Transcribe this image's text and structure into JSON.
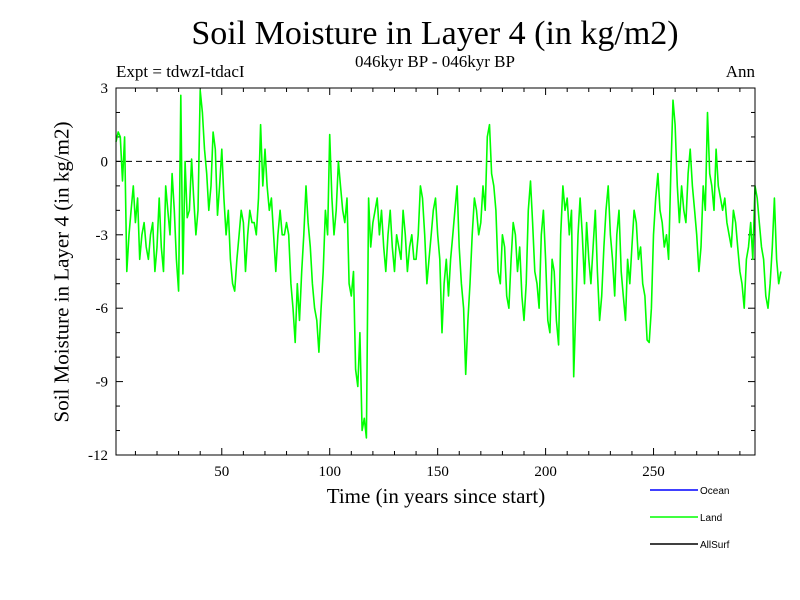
{
  "chart_data": {
    "type": "line",
    "title": "Soil Moisture in Layer 4 (in kg/m2)",
    "subtitle": "046kyr BP - 046kyr BP",
    "experiment_label": "Expt = tdwzI-tdacI",
    "period_label": "Ann",
    "xlabel": "Time (in years since start)",
    "ylabel": "Soil Moisture in Layer 4 (in kg/m2)",
    "xlim": [
      1,
      297
    ],
    "ylim": [
      -12,
      3
    ],
    "x_ticks": [
      50,
      100,
      150,
      200,
      250
    ],
    "y_ticks": [
      3,
      0,
      -3,
      -6,
      -9,
      -12
    ],
    "zero_line": true,
    "grid": false,
    "legend_position": "bottom-right",
    "legend": [
      {
        "name": "Ocean",
        "color": "#0000ff"
      },
      {
        "name": "Land",
        "color": "#00ff00"
      },
      {
        "name": "AllSurf",
        "color": "#000000"
      }
    ],
    "series": [
      {
        "name": "Land",
        "color": "#00ff00",
        "x_start": 1,
        "x_step": 1,
        "values": [
          0.8,
          1.2,
          1.0,
          -0.8,
          1.0,
          -4.5,
          -3.0,
          -2.0,
          -1.0,
          -2.5,
          -1.5,
          -4.0,
          -3.0,
          -2.5,
          -3.5,
          -4.0,
          -3.0,
          -2.5,
          -4.5,
          -3.5,
          -1.5,
          -3.5,
          -4.5,
          -1.0,
          -2.0,
          -3.0,
          -0.5,
          -2.0,
          -4.0,
          -5.3,
          2.7,
          -4.6,
          0.0,
          -2.3,
          -2.0,
          0.1,
          -1.5,
          -3.0,
          -2.0,
          2.9,
          2.0,
          0.5,
          -0.5,
          -2.0,
          -1.0,
          1.2,
          0.5,
          -2.2,
          -1.0,
          0.5,
          -1.5,
          -3.0,
          -2.0,
          -4.0,
          -5.0,
          -5.3,
          -4.0,
          -3.0,
          -2.0,
          -2.5,
          -4.5,
          -3.0,
          -2.0,
          -2.5,
          -2.5,
          -3.0,
          -1.5,
          1.5,
          -1.0,
          0.5,
          -1.0,
          -2.0,
          -1.5,
          -3.0,
          -4.5,
          -3.0,
          -2.0,
          -3.0,
          -3.0,
          -2.5,
          -3.0,
          -5.0,
          -6.0,
          -7.4,
          -5.0,
          -6.5,
          -4.5,
          -3.0,
          -1.0,
          -2.5,
          -3.5,
          -5.0,
          -6.0,
          -6.5,
          -7.8,
          -6.0,
          -4.5,
          -2.0,
          -3.0,
          1.1,
          -1.5,
          -3.0,
          -2.0,
          0.0,
          -1.0,
          -2.0,
          -2.5,
          -1.5,
          -5.0,
          -5.5,
          -4.5,
          -8.5,
          -9.2,
          -7.0,
          -11.0,
          -10.5,
          -11.3,
          -1.5,
          -3.5,
          -2.5,
          -2.0,
          -1.5,
          -3.0,
          -2.0,
          -3.5,
          -4.5,
          -3.0,
          -2.0,
          -3.5,
          -4.5,
          -3.0,
          -3.5,
          -4.0,
          -2.0,
          -3.0,
          -4.5,
          -3.5,
          -3.0,
          -4.0,
          -4.0,
          -3.0,
          -1.0,
          -1.5,
          -3.0,
          -5.0,
          -4.0,
          -3.0,
          -2.0,
          -1.5,
          -3.0,
          -4.0,
          -7.0,
          -5.0,
          -4.0,
          -5.5,
          -4.0,
          -3.0,
          -2.0,
          -1.0,
          -3.5,
          -5.0,
          -6.0,
          -8.7,
          -6.5,
          -5.0,
          -3.0,
          -1.5,
          -2.0,
          -3.0,
          -2.5,
          -1.0,
          -2.0,
          1.0,
          1.5,
          -0.5,
          -1.0,
          -2.0,
          -4.5,
          -5.0,
          -3.0,
          -3.5,
          -5.5,
          -6.0,
          -4.0,
          -2.5,
          -3.0,
          -4.5,
          -3.5,
          -5.5,
          -6.5,
          -5.0,
          -2.0,
          -0.8,
          -2.5,
          -4.5,
          -5.0,
          -6.0,
          -3.0,
          -2.0,
          -4.0,
          -6.5,
          -7.0,
          -4.0,
          -4.5,
          -6.5,
          -7.5,
          -3.0,
          -1.0,
          -2.0,
          -1.5,
          -3.0,
          -2.0,
          -8.8,
          -6.0,
          -3.0,
          -1.5,
          -3.0,
          -5.0,
          -2.5,
          -4.0,
          -5.0,
          -3.5,
          -2.0,
          -4.5,
          -6.5,
          -5.5,
          -3.5,
          -2.0,
          -1.0,
          -3.0,
          -4.0,
          -5.5,
          -3.0,
          -2.0,
          -4.5,
          -5.5,
          -6.5,
          -4.0,
          -5.0,
          -3.5,
          -2.0,
          -2.5,
          -4.0,
          -3.5,
          -5.0,
          -5.5,
          -7.3,
          -7.4,
          -6.0,
          -3.0,
          -1.5,
          -0.5,
          -2.0,
          -2.5,
          -3.5,
          -3.0,
          -4.0,
          -0.5,
          2.5,
          1.5,
          -1.0,
          -2.5,
          -1.0,
          -2.0,
          -2.5,
          -0.5,
          0.5,
          -1.0,
          -2.0,
          -3.0,
          -4.5,
          -3.5,
          -1.0,
          -2.0,
          2.0,
          -0.5,
          -1.0,
          -2.0,
          0.5,
          -1.0,
          -1.5,
          -2.0,
          -1.5,
          -2.5,
          -3.0,
          -3.5,
          -2.0,
          -2.5,
          -3.5,
          -4.5,
          -5.0,
          -6.0,
          -4.0,
          -3.5,
          -2.5,
          -4.0,
          -1.0,
          -1.5,
          -2.5,
          -3.5,
          -4.0,
          -5.5,
          -6.0,
          -5.0,
          -3.5,
          -1.5,
          -4.0,
          -5.0,
          -4.5
        ]
      }
    ]
  }
}
